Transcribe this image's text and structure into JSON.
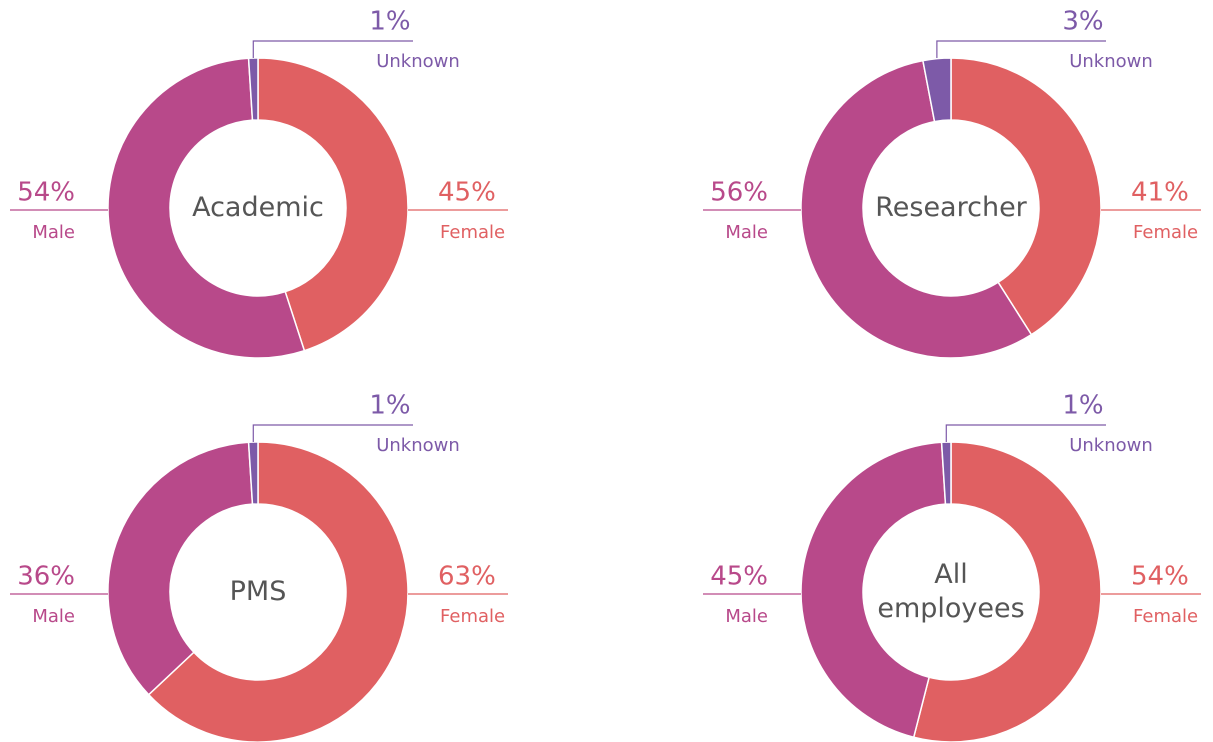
{
  "chart_data": [
    {
      "type": "pie",
      "title": "Academic",
      "categories": [
        "Female",
        "Male",
        "Unknown"
      ],
      "values": [
        45,
        54,
        1
      ],
      "value_labels": [
        "45%",
        "54%",
        "1%"
      ],
      "colors": [
        "#e06062",
        "#b8498a",
        "#7d5aa8"
      ]
    },
    {
      "type": "pie",
      "title": "Researcher",
      "categories": [
        "Female",
        "Male",
        "Unknown"
      ],
      "values": [
        41,
        56,
        3
      ],
      "value_labels": [
        "41%",
        "56%",
        "3%"
      ],
      "colors": [
        "#e06062",
        "#b8498a",
        "#7d5aa8"
      ]
    },
    {
      "type": "pie",
      "title": "PMS",
      "categories": [
        "Female",
        "Male",
        "Unknown"
      ],
      "values": [
        63,
        36,
        1
      ],
      "value_labels": [
        "63%",
        "36%",
        "1%"
      ],
      "colors": [
        "#e06062",
        "#b8498a",
        "#7d5aa8"
      ]
    },
    {
      "type": "pie",
      "title": "All employees",
      "categories": [
        "Female",
        "Male",
        "Unknown"
      ],
      "values": [
        54,
        45,
        1
      ],
      "value_labels": [
        "54%",
        "45%",
        "1%"
      ],
      "colors": [
        "#e06062",
        "#b8498a",
        "#7d5aa8"
      ]
    }
  ]
}
